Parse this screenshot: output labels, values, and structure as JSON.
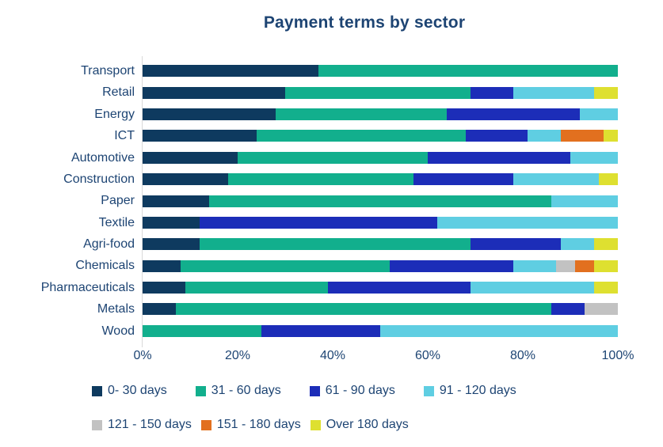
{
  "title": "Payment terms by sector",
  "colors": {
    "text": "#1D4473",
    "axis_line": "#D9D9D9",
    "background": "#FFFFFF"
  },
  "chart_data": {
    "type": "bar",
    "stacked": true,
    "orientation": "horizontal",
    "title": "Payment terms by sector",
    "xlabel": "",
    "ylabel": "",
    "xlim": [
      0,
      100
    ],
    "x_ticks": [
      "0%",
      "20%",
      "40%",
      "60%",
      "80%",
      "100%"
    ],
    "grid": false,
    "legend_position": "bottom",
    "categories": [
      "Transport",
      "Retail",
      "Energy",
      "ICT",
      "Automotive",
      "Construction",
      "Paper",
      "Textile",
      "Agri-food",
      "Chemicals",
      "Pharmaceuticals",
      "Metals",
      "Wood"
    ],
    "series": [
      {
        "name": "0- 30 days",
        "color": "#0E3A5F",
        "values": [
          37,
          30,
          28,
          24,
          20,
          18,
          14,
          12,
          12,
          8,
          9,
          7,
          0
        ]
      },
      {
        "name": "31 - 60 days",
        "color": "#12AF8D",
        "values": [
          63,
          39,
          36,
          44,
          40,
          39,
          72,
          0,
          57,
          44,
          30,
          79,
          25
        ]
      },
      {
        "name": "61 - 90 days",
        "color": "#1C2DB8",
        "values": [
          0,
          9,
          28,
          13,
          30,
          21,
          0,
          50,
          19,
          26,
          30,
          7,
          25
        ]
      },
      {
        "name": "91 - 120 days",
        "color": "#5FCEE2",
        "values": [
          0,
          17,
          8,
          7,
          10,
          18,
          14,
          38,
          7,
          9,
          26,
          0,
          50
        ]
      },
      {
        "name": "121 - 150 days",
        "color": "#C2C2C2",
        "values": [
          0,
          0,
          0,
          0,
          0,
          0,
          0,
          0,
          0,
          4,
          0,
          7,
          0
        ]
      },
      {
        "name": "151 - 180 days",
        "color": "#E2701F",
        "values": [
          0,
          0,
          0,
          9,
          0,
          0,
          0,
          0,
          0,
          4,
          0,
          0,
          0
        ]
      },
      {
        "name": "Over 180 days",
        "color": "#DEE030",
        "values": [
          0,
          5,
          0,
          3,
          0,
          4,
          0,
          0,
          5,
          5,
          5,
          0,
          0
        ]
      }
    ],
    "legend_row_split": [
      4,
      3
    ]
  }
}
